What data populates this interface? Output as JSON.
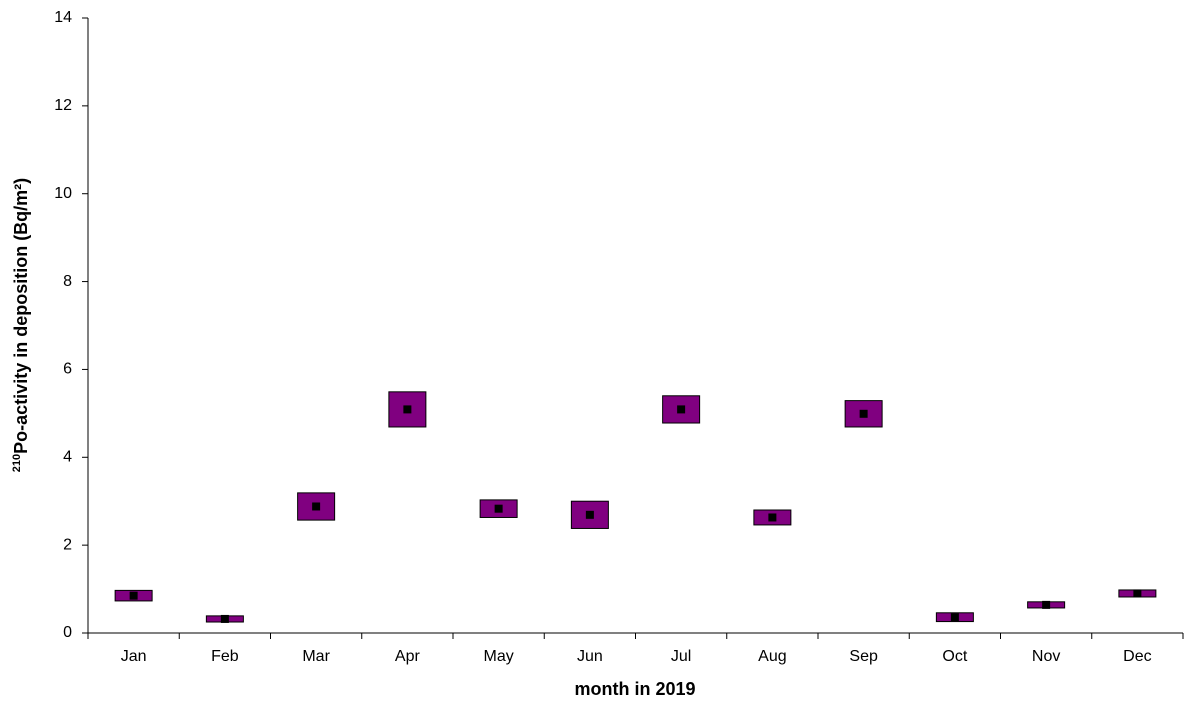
{
  "chart_data": {
    "type": "error_box",
    "x_label": "month in 2019",
    "y_label_sup": "210",
    "y_label": "Po-activity in deposition (Bq/m²)",
    "categories": [
      "Jan",
      "Feb",
      "Mar",
      "Apr",
      "May",
      "Jun",
      "Jul",
      "Aug",
      "Sep",
      "Oct",
      "Nov",
      "Dec"
    ],
    "values": [
      0.85,
      0.32,
      2.88,
      5.09,
      2.83,
      2.69,
      5.09,
      2.63,
      4.99,
      0.36,
      0.64,
      0.9
    ],
    "errors": [
      0.12,
      0.07,
      0.31,
      0.4,
      0.2,
      0.31,
      0.31,
      0.17,
      0.3,
      0.1,
      0.07,
      0.08
    ],
    "color": "#800080",
    "marker_color": "#000000",
    "ylim": [
      0,
      14
    ],
    "yticks": [
      0,
      2,
      4,
      6,
      8,
      10,
      12,
      14
    ],
    "grid": false
  }
}
